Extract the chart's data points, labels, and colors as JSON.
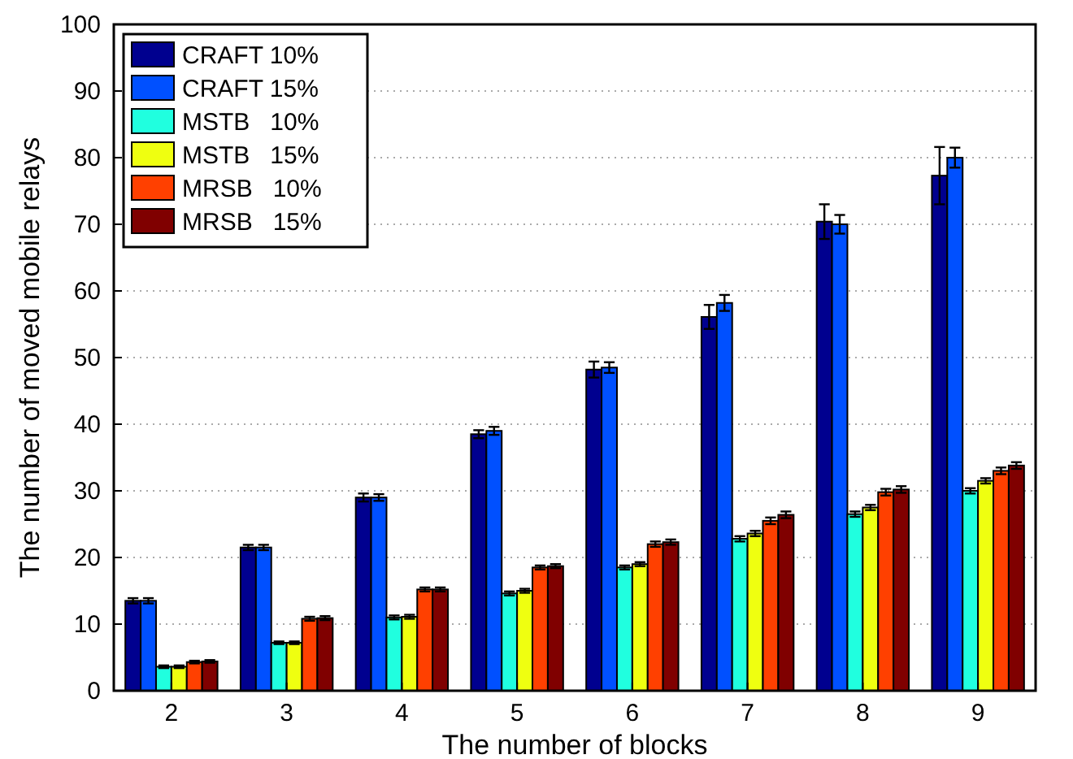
{
  "chart_data": {
    "type": "bar",
    "xlabel": "The number of blocks",
    "ylabel": "The number of moved mobile relays",
    "categories": [
      "2",
      "3",
      "4",
      "5",
      "6",
      "7",
      "8",
      "9"
    ],
    "ylim": [
      0,
      100
    ],
    "yticks": [
      0,
      10,
      20,
      30,
      40,
      50,
      60,
      70,
      80,
      90,
      100
    ],
    "grid": "y",
    "legend": "top left",
    "series": [
      {
        "name": "CRAFT 10%",
        "color": "#00008f",
        "values": [
          13.5,
          21.5,
          29,
          38.5,
          48.2,
          56.1,
          70.4,
          77.3
        ],
        "errors": [
          0.4,
          0.4,
          0.6,
          0.6,
          1.2,
          1.8,
          2.6,
          4.3
        ]
      },
      {
        "name": "CRAFT 15%",
        "color": "#0050ff",
        "values": [
          13.5,
          21.5,
          29,
          39,
          48.5,
          58.2,
          70,
          80
        ],
        "errors": [
          0.4,
          0.4,
          0.5,
          0.6,
          0.8,
          1.2,
          1.4,
          1.5
        ]
      },
      {
        "name": "MSTB   10%",
        "color": "#20ffdf",
        "values": [
          3.6,
          7.2,
          11,
          14.6,
          18.5,
          22.8,
          26.5,
          30
        ],
        "errors": [
          0.2,
          0.2,
          0.3,
          0.3,
          0.3,
          0.4,
          0.4,
          0.4
        ]
      },
      {
        "name": "MSTB   15%",
        "color": "#efff10",
        "values": [
          3.6,
          7.2,
          11.1,
          15,
          19,
          23.6,
          27.5,
          31.5
        ],
        "errors": [
          0.2,
          0.2,
          0.3,
          0.3,
          0.3,
          0.4,
          0.4,
          0.4
        ]
      },
      {
        "name": "MRSB   10%",
        "color": "#ff4000",
        "values": [
          4.3,
          10.8,
          15.2,
          18.5,
          22,
          25.5,
          29.8,
          33
        ],
        "errors": [
          0.2,
          0.3,
          0.3,
          0.3,
          0.4,
          0.5,
          0.5,
          0.5
        ]
      },
      {
        "name": "MRSB   15%",
        "color": "#800000",
        "values": [
          4.4,
          10.9,
          15.2,
          18.7,
          22.3,
          26.4,
          30.2,
          33.8
        ],
        "errors": [
          0.2,
          0.3,
          0.3,
          0.3,
          0.4,
          0.5,
          0.5,
          0.5
        ]
      }
    ]
  }
}
